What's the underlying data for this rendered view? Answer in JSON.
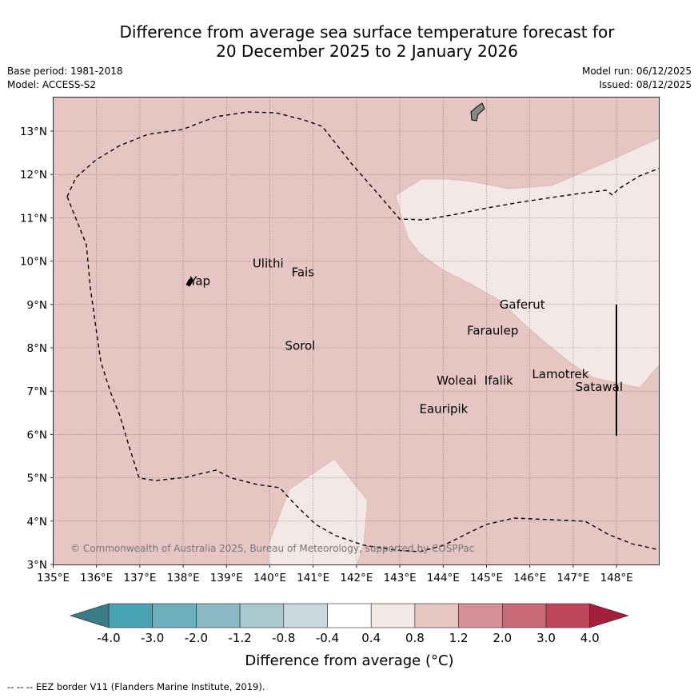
{
  "title": {
    "line1": "Difference from average sea surface temperature forecast for",
    "line2": "20 December 2025 to 2 January 2026"
  },
  "info": {
    "base_period": "Base period: 1981-2018",
    "model": "Model: ACCESS-S2",
    "model_run": "Model run: 06/12/2025",
    "issued": "Issued: 08/12/2025"
  },
  "map": {
    "lon_range": [
      135,
      149
    ],
    "lat_range": [
      3,
      13.8
    ],
    "lon_ticks": [
      "135°E",
      "136°E",
      "137°E",
      "138°E",
      "139°E",
      "140°E",
      "141°E",
      "142°E",
      "143°E",
      "144°E",
      "145°E",
      "146°E",
      "147°E",
      "148°E"
    ],
    "lat_ticks": [
      "3°N",
      "4°N",
      "5°N",
      "6°N",
      "7°N",
      "8°N",
      "9°N",
      "10°N",
      "11°N",
      "12°N",
      "13°N"
    ],
    "background_anomaly_color": "#e6c6c2",
    "light_anomaly_color": "#f4e8e6",
    "places": [
      {
        "name": "Yap",
        "lon": 138.15,
        "lat": 9.45
      },
      {
        "name": "Ulithi",
        "lon": 139.6,
        "lat": 9.85
      },
      {
        "name": "Fais",
        "lon": 140.5,
        "lat": 9.65
      },
      {
        "name": "Sorol",
        "lon": 140.35,
        "lat": 7.95
      },
      {
        "name": "Gaferut",
        "lon": 145.3,
        "lat": 8.9
      },
      {
        "name": "Faraulep",
        "lon": 144.55,
        "lat": 8.3
      },
      {
        "name": "Woleai",
        "lon": 143.85,
        "lat": 7.15
      },
      {
        "name": "Ifalik",
        "lon": 144.95,
        "lat": 7.15
      },
      {
        "name": "Lamotrek",
        "lon": 146.05,
        "lat": 7.3
      },
      {
        "name": "Satawal",
        "lon": 147.05,
        "lat": 7.0
      },
      {
        "name": "Eauripik",
        "lon": 143.45,
        "lat": 6.5
      }
    ],
    "copyright": "© Commonwealth of Australia 2025, Bureau of Meteorology, supported by COSPPac"
  },
  "colorbar": {
    "label": "Difference from average (°C)",
    "tick_labels": [
      "-4.0",
      "-3.0",
      "-2.0",
      "-1.2",
      "-0.8",
      "-0.4",
      "0.4",
      "0.8",
      "1.2",
      "2.0",
      "3.0",
      "4.0"
    ],
    "under_color": "#3a7b88",
    "over_color": "#a3203c",
    "colors": [
      "#4aa3b4",
      "#6cafbd",
      "#8ab8c4",
      "#a9c9cf",
      "#c9d9dc",
      "#ffffff",
      "#f4e8e6",
      "#e6c6c2",
      "#d79097",
      "#cb6a77",
      "#be4658"
    ]
  },
  "footnote": "-- -- -- EEZ border V11 (Flanders Marine Institute, 2019)."
}
